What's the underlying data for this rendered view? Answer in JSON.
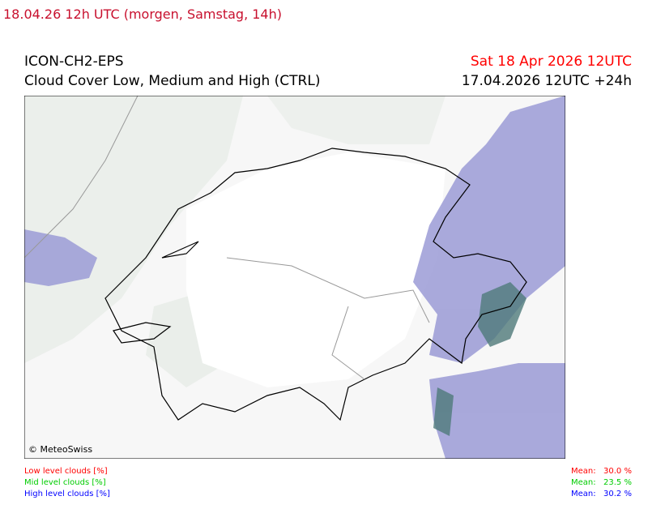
{
  "header": {
    "run_label": "18.04.26 12h UTC (morgen, Samstag, 14h)"
  },
  "title": {
    "model": "ICON-CH2-EPS",
    "product": "Cloud Cover Low, Medium and High (CTRL)",
    "valid_time": "Sat 18 Apr 2026 12UTC",
    "run_time": "17.04.2026 12UTC +24h"
  },
  "map": {
    "credit": "© MeteoSwiss"
  },
  "legend": {
    "items": [
      {
        "label": "Low level clouds [%]",
        "mean_label": "Mean:",
        "mean": "30.0 %"
      },
      {
        "label": "Mid level clouds [%]",
        "mean_label": "Mean:",
        "mean": "23.5 %"
      },
      {
        "label": "High level clouds [%]",
        "mean_label": "Mean:",
        "mean": "30.2 %"
      }
    ]
  }
}
